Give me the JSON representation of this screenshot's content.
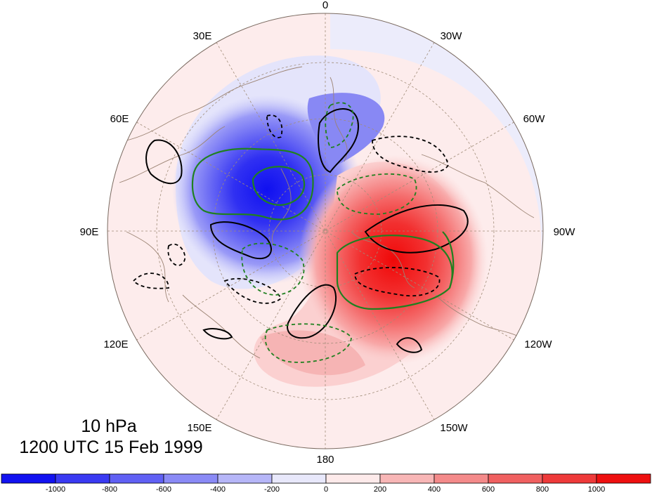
{
  "map": {
    "projection": "north-polar-stereographic",
    "longitude_labels": [
      "0",
      "30W",
      "60W",
      "90W",
      "120W",
      "150W",
      "180",
      "150E",
      "120E",
      "90E",
      "60E",
      "30E"
    ],
    "level": "10 hPa",
    "time": "1200 UTC 15 Feb 1999"
  },
  "colorbar": {
    "ticks": [
      "-1000",
      "-800",
      "-600",
      "-400",
      "-200",
      "0",
      "200",
      "400",
      "600",
      "800",
      "1000"
    ],
    "colors": [
      "#1212f0",
      "#3a3af2",
      "#6060f4",
      "#8a8af6",
      "#b6b6f8",
      "#e8e8fb",
      "#fdeaea",
      "#f8b6b6",
      "#f48a8a",
      "#f06060",
      "#ee3a3a",
      "#ee1010"
    ]
  },
  "colors": {
    "negative_contour": "#000000",
    "positive_contour": "#000000",
    "green_contour": "#208020",
    "coastline": "#9c8474",
    "grid": "#a08c78"
  }
}
